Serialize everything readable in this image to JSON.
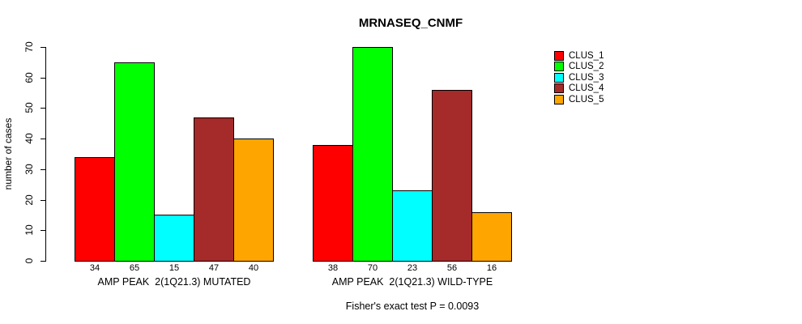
{
  "title": "MRNASEQ_CNMF",
  "chart_data": {
    "type": "bar",
    "title": "MRNASEQ_CNMF",
    "ylabel": "number of cases",
    "xlabel": "",
    "ylim": [
      0,
      70
    ],
    "yticks": [
      0,
      10,
      20,
      30,
      40,
      50,
      60,
      70
    ],
    "grid": false,
    "legend_position": "right",
    "categories": [
      "AMP PEAK  2(1Q21.3) MUTATED",
      "AMP PEAK  2(1Q21.3) WILD-TYPE"
    ],
    "series": [
      {
        "name": "CLUS_1",
        "color": "#FF0000",
        "values": [
          34,
          38
        ]
      },
      {
        "name": "CLUS_2",
        "color": "#00FF00",
        "values": [
          65,
          70
        ]
      },
      {
        "name": "CLUS_3",
        "color": "#00FFFF",
        "values": [
          15,
          23
        ]
      },
      {
        "name": "CLUS_4",
        "color": "#A52A2A",
        "values": [
          47,
          56
        ]
      },
      {
        "name": "CLUS_5",
        "color": "#FFA500",
        "values": [
          40,
          16
        ]
      }
    ],
    "bar_value_labels": {
      "group_1": [
        34,
        65,
        15,
        47,
        40
      ],
      "group_2": [
        38,
        70,
        23,
        56,
        16
      ]
    },
    "annotation": "Fisher's exact test P = 0.0093"
  }
}
